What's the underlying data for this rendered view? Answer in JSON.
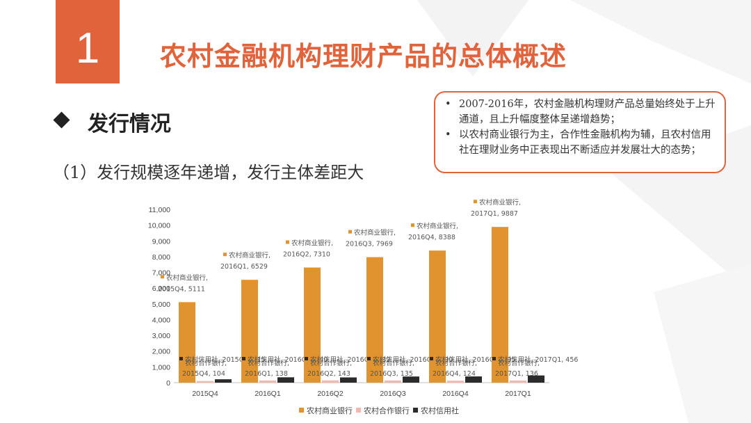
{
  "slide": {
    "number": "1",
    "title": "农村金融机构理财产品的总体概述",
    "section": "发行情况",
    "subtitle": "（1）发行规模逐年递增，发行主体差距大"
  },
  "notes": [
    "2007-2016年，农村金融机构理财产品总量始终处于上升通道，且上升幅度整体呈递增趋势；",
    "以农村商业银行为主，合作性金融机构为辅，且农村信用社在理财业务中正表现出不断适应并发展壮大的态势；"
  ],
  "colors": {
    "accent": "#e0633b",
    "rural_commercial": "#e0932e",
    "rural_cooperative": "#f2b8b0",
    "credit_union": "#2b2b2b"
  },
  "chart_data": {
    "type": "bar",
    "categories": [
      "2015Q4",
      "2016Q1",
      "2016Q2",
      "2016Q3",
      "2016Q4",
      "2017Q1"
    ],
    "series": [
      {
        "name": "农村商业银行",
        "values": [
          5111,
          6529,
          7310,
          7969,
          8388,
          9887
        ]
      },
      {
        "name": "农村合作银行",
        "values": [
          104,
          138,
          143,
          135,
          124,
          136
        ]
      },
      {
        "name": "农村信用社",
        "values": [
          215,
          340,
          332,
          390,
          395,
          456
        ]
      }
    ],
    "ylim": [
      0,
      11000
    ],
    "yticks": [
      "0",
      "1,000",
      "2,000",
      "3,000",
      "4,000",
      "5,000",
      "6,000",
      "7,000",
      "8,000",
      "9,000",
      "10,000",
      "11,000"
    ],
    "data_labels": [
      {
        "series": "农村商业银行",
        "line1": "农村商业银行,",
        "items": [
          "2015Q4, 5111",
          "2016Q1, 6529",
          "2016Q2, 7310",
          "2016Q3, 7969",
          "2016Q4, 8388",
          "2017Q1, 9887"
        ]
      },
      {
        "series": "农村合作银行",
        "line1": "农村合作银行,",
        "items": [
          "2015Q4, 104",
          "2016Q1, 138",
          "2016Q2, 143",
          "2016Q3, 135",
          "2016Q4, 124",
          "2017Q1, 136"
        ]
      },
      {
        "series": "农村信用社",
        "line1": "农村信用社,",
        "items": [
          "2015Q4, 215",
          "2016Q1, 340",
          "2016Q2, 332",
          "2016Q3, 390",
          "2016Q4, 395",
          "2017Q1, 456"
        ]
      }
    ],
    "legend": [
      "农村商业银行",
      "农村合作银行",
      "农村信用社"
    ],
    "legend_position": "bottom",
    "grid": false
  }
}
